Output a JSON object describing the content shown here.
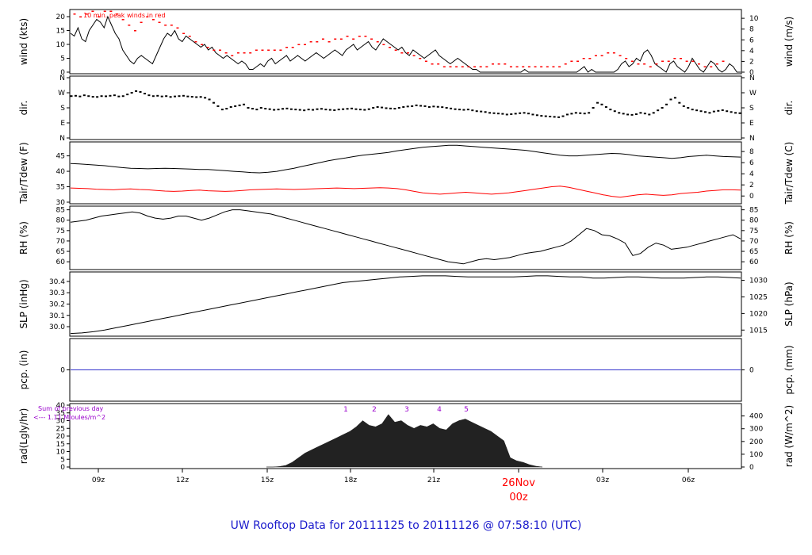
{
  "title": "UW Rooftop Data for 20111125  to  20111126 @ 07:58:10  (UTC)",
  "colors": {
    "title": "#1a1acc",
    "accent": "#ff0000",
    "purple": "#9900cc",
    "pcp_line": "#3333cc",
    "frame": "#000000"
  },
  "x_ticks": [
    "09z",
    "12z",
    "15z",
    "18z",
    "21z",
    "03z",
    "06z"
  ],
  "day_label": {
    "date": "26Nov",
    "hour": "00z"
  },
  "chart_data": [
    {
      "type": "line",
      "id": "wind",
      "ylabel": "wind (kts)",
      "ylabel_right": "wind (m/s)",
      "annotation": "10 min. peak winds in red",
      "yticks_left": [
        0,
        5,
        10,
        15,
        20
      ],
      "yticks_right": [
        0,
        2,
        4,
        6,
        8,
        10
      ],
      "ylim": [
        0,
        22
      ],
      "series": [
        {
          "values": [
            14,
            13,
            16,
            12,
            11,
            15,
            17,
            19,
            18,
            16,
            20,
            17,
            14,
            12,
            8,
            6,
            4,
            3,
            5,
            6,
            5,
            4,
            3,
            6,
            9,
            12,
            14,
            13,
            15,
            12,
            11,
            13,
            12,
            11,
            10,
            9,
            10,
            8,
            9,
            7,
            6,
            5,
            6,
            5,
            4,
            3,
            4,
            3,
            1,
            1,
            2,
            3,
            2,
            4,
            5,
            3,
            4,
            5,
            6,
            4,
            5,
            6,
            5,
            4,
            5,
            6,
            7,
            6,
            5,
            6,
            7,
            8,
            7,
            6,
            8,
            9,
            10,
            8,
            9,
            10,
            11,
            9,
            8,
            10,
            12,
            11,
            10,
            9,
            8,
            9,
            7,
            6,
            8,
            7,
            6,
            5,
            6,
            7,
            8,
            6,
            5,
            4,
            3,
            4,
            5,
            4,
            3,
            2,
            1,
            1,
            0,
            0,
            0,
            0,
            0,
            0,
            0,
            0,
            0,
            0,
            0,
            0,
            1,
            0,
            0,
            0,
            0,
            0,
            0,
            0,
            0,
            0,
            0,
            0,
            0,
            0,
            0,
            1,
            2,
            0,
            1,
            0,
            0,
            0,
            0,
            0,
            0,
            1,
            3,
            4,
            2,
            3,
            5,
            4,
            7,
            8,
            6,
            3,
            2,
            1,
            0,
            3,
            4,
            2,
            1,
            0,
            2,
            5,
            3,
            1,
            0,
            2,
            4,
            3,
            1,
            0,
            1,
            3,
            2,
            0,
            0
          ]
        },
        {
          "type": "scatter",
          "values": [
            20,
            19,
            20,
            21,
            19,
            21,
            21,
            20,
            18,
            16,
            14,
            17,
            19,
            18,
            17,
            16,
            16,
            15,
            13,
            12,
            10,
            9,
            8,
            7,
            7,
            6,
            5,
            6,
            6,
            6,
            7,
            7,
            7,
            7,
            7,
            8,
            8,
            9,
            9,
            10,
            10,
            11,
            10,
            11,
            11,
            12,
            11,
            12,
            12,
            11,
            10,
            9,
            8,
            7,
            6,
            6,
            5,
            4,
            3,
            2,
            2,
            1,
            1,
            1,
            1,
            1,
            1,
            1,
            1,
            2,
            2,
            2,
            1,
            1,
            1,
            1,
            1,
            1,
            1,
            1,
            1,
            2,
            3,
            3,
            4,
            4,
            5,
            5,
            6,
            6,
            5,
            4,
            3,
            2,
            2,
            1,
            2,
            3,
            3,
            4,
            4,
            3,
            3,
            2,
            1,
            1,
            2,
            3
          ]
        }
      ]
    },
    {
      "type": "scatter",
      "id": "dir",
      "ylabel": "dir.",
      "ylabel_right": "dir.",
      "yticks_left": [
        "N",
        "W",
        "S",
        "E",
        "N"
      ],
      "yticks_right": [
        "N",
        "W",
        "S",
        "E",
        "N"
      ],
      "ylim": [
        0,
        360
      ],
      "values": [
        250,
        252,
        248,
        255,
        250,
        246,
        245,
        250,
        249,
        252,
        255,
        248,
        250,
        260,
        270,
        280,
        275,
        265,
        255,
        250,
        252,
        248,
        250,
        245,
        248,
        250,
        252,
        248,
        246,
        244,
        245,
        240,
        230,
        210,
        190,
        170,
        175,
        185,
        190,
        195,
        200,
        180,
        175,
        170,
        180,
        175,
        172,
        168,
        170,
        174,
        176,
        172,
        170,
        168,
        165,
        170,
        168,
        172,
        174,
        170,
        168,
        166,
        170,
        172,
        174,
        176,
        172,
        170,
        168,
        172,
        180,
        185,
        182,
        178,
        176,
        175,
        180,
        185,
        188,
        190,
        195,
        192,
        190,
        185,
        188,
        186,
        184,
        180,
        176,
        172,
        170,
        168,
        170,
        165,
        160,
        158,
        155,
        150,
        148,
        146,
        144,
        140,
        142,
        145,
        148,
        150,
        146,
        140,
        136,
        132,
        130,
        128,
        126,
        124,
        130,
        140,
        145,
        150,
        148,
        146,
        150,
        180,
        210,
        200,
        185,
        170,
        160,
        150,
        145,
        140,
        138,
        142,
        150,
        146,
        140,
        150,
        165,
        180,
        200,
        230,
        240,
        210,
        190,
        180,
        170,
        165,
        160,
        155,
        150,
        158,
        162,
        166,
        160,
        155,
        150,
        148
      ]
    },
    {
      "type": "line",
      "id": "temp",
      "ylabel": "Tair/Tdew (F)",
      "ylabel_right": "Tair/Tdew (C)",
      "yticks_left": [
        30,
        35,
        40,
        45
      ],
      "yticks_right": [
        0,
        2,
        4,
        6,
        8
      ],
      "ylim": [
        30,
        49
      ],
      "series": [
        {
          "color": "#000000",
          "values": [
            42.5,
            42.4,
            42.2,
            42.0,
            41.8,
            41.5,
            41.2,
            41.0,
            40.9,
            40.8,
            40.9,
            41.0,
            40.9,
            40.8,
            40.7,
            40.6,
            40.6,
            40.4,
            40.2,
            40.0,
            39.8,
            39.6,
            39.5,
            39.7,
            40.0,
            40.5,
            41.0,
            41.6,
            42.2,
            42.8,
            43.4,
            43.9,
            44.3,
            44.8,
            45.2,
            45.5,
            45.8,
            46.1,
            46.6,
            47.0,
            47.4,
            47.8,
            48.0,
            48.2,
            48.4,
            48.4,
            48.2,
            48.0,
            47.8,
            47.6,
            47.4,
            47.2,
            47.0,
            46.8,
            46.4,
            46.0,
            45.6,
            45.2,
            45.0,
            45.0,
            45.2,
            45.4,
            45.6,
            45.8,
            45.7,
            45.4,
            45.0,
            44.8,
            44.6,
            44.4,
            44.2,
            44.4,
            44.8,
            45.0,
            45.2,
            45.0,
            44.8,
            44.7,
            44.6
          ]
        },
        {
          "color": "#ff0000",
          "values": [
            34.6,
            34.5,
            34.4,
            34.2,
            34.1,
            34.0,
            34.2,
            34.3,
            34.1,
            34.0,
            33.8,
            33.6,
            33.5,
            33.6,
            33.8,
            33.9,
            33.7,
            33.6,
            33.5,
            33.6,
            33.8,
            34.0,
            34.1,
            34.2,
            34.3,
            34.2,
            34.1,
            34.2,
            34.3,
            34.4,
            34.5,
            34.6,
            34.5,
            34.4,
            34.5,
            34.6,
            34.7,
            34.6,
            34.4,
            34.0,
            33.5,
            33.0,
            32.8,
            32.6,
            32.8,
            33.0,
            33.2,
            33.0,
            32.8,
            32.6,
            32.8,
            33.0,
            33.4,
            33.8,
            34.2,
            34.6,
            35.0,
            35.2,
            34.8,
            34.2,
            33.6,
            33.0,
            32.4,
            31.9,
            31.6,
            32.0,
            32.4,
            32.6,
            32.4,
            32.2,
            32.4,
            32.8,
            33.0,
            33.2,
            33.6,
            33.8,
            34.0,
            34.0,
            33.9
          ]
        }
      ]
    },
    {
      "type": "line",
      "id": "rh",
      "ylabel": "RH (%)",
      "ylabel_right": "RH (%)",
      "yticks_left": [
        60,
        65,
        70,
        75,
        80,
        85
      ],
      "yticks_right": [
        60,
        65,
        70,
        75,
        80,
        85
      ],
      "ylim": [
        57,
        86
      ],
      "series": [
        {
          "color": "#000000",
          "values": [
            79,
            79.5,
            80,
            81,
            82,
            82.5,
            83,
            83.5,
            84,
            83.5,
            82,
            81,
            80.5,
            81,
            82,
            82,
            81,
            80,
            81,
            82.5,
            84,
            85,
            85,
            84.5,
            84,
            83.5,
            83,
            82,
            81,
            80,
            79,
            78,
            77,
            76,
            75,
            74,
            73,
            72,
            71,
            70,
            69,
            68,
            67,
            66,
            65,
            64,
            63,
            62,
            61,
            60,
            59.5,
            59,
            60,
            61,
            61.5,
            61,
            61.5,
            62,
            63,
            64,
            64.5,
            65,
            66,
            67,
            68,
            70,
            73,
            76,
            75,
            73,
            72.5,
            71,
            69,
            63,
            64,
            67,
            69,
            68,
            66,
            66.5,
            67,
            68,
            69,
            70,
            71,
            72,
            73,
            71
          ]
        }
      ]
    },
    {
      "type": "line",
      "id": "slp",
      "ylabel": "SLP (inHg)",
      "ylabel_right": "SLP (hPa)",
      "yticks_left": [
        "30.0",
        "30.1",
        "30.2",
        "30.3",
        "30.4"
      ],
      "yticks_right": [
        1015,
        1020,
        1025,
        1030
      ],
      "ylim": [
        29.93,
        30.47
      ],
      "series": [
        {
          "color": "#000000",
          "values": [
            29.94,
            29.945,
            29.955,
            29.97,
            29.99,
            30.01,
            30.03,
            30.05,
            30.07,
            30.09,
            30.11,
            30.13,
            30.15,
            30.17,
            30.19,
            30.21,
            30.23,
            30.25,
            30.27,
            30.29,
            30.31,
            30.33,
            30.35,
            30.37,
            30.39,
            30.4,
            30.41,
            30.42,
            30.43,
            30.44,
            30.445,
            30.45,
            30.45,
            30.45,
            30.445,
            30.44,
            30.44,
            30.44,
            30.44,
            30.44,
            30.445,
            30.45,
            30.45,
            30.445,
            30.44,
            30.44,
            30.43,
            30.43,
            30.435,
            30.44,
            30.44,
            30.435,
            30.43,
            30.43,
            30.43,
            30.435,
            30.44,
            30.44,
            30.435,
            30.43
          ]
        }
      ]
    },
    {
      "type": "line",
      "id": "pcp",
      "ylabel": "pcp. (in)",
      "ylabel_right": "pcp. (mm)",
      "yticks_left": [
        0
      ],
      "yticks_right": [
        0
      ],
      "ylim": [
        -1,
        1
      ],
      "series": [
        {
          "color": "#3333cc",
          "values": [
            0,
            0
          ]
        }
      ]
    },
    {
      "type": "area",
      "id": "rad",
      "ylabel": "rad(Lgly/hr)",
      "ylabel_right": "rad (W/m^2)",
      "annotation_line1": "Sum of previous day",
      "annotation_line2": "<--- 1.11 MJoules/m^2",
      "marker_labels": [
        "1",
        "2",
        "3",
        "4",
        "5"
      ],
      "yticks_left": [
        0,
        5,
        10,
        15,
        20,
        25,
        30,
        35,
        40
      ],
      "yticks_right": [
        0,
        100,
        200,
        300,
        400
      ],
      "ylim": [
        0,
        40
      ],
      "series": [
        {
          "color": "#222222",
          "values": [
            0,
            0,
            0.3,
            1,
            3,
            6,
            9,
            11,
            13,
            15,
            17,
            19,
            21,
            23,
            26,
            30,
            27,
            26,
            28,
            34,
            29,
            30,
            27,
            25,
            27,
            26,
            28,
            25,
            24,
            28,
            30,
            31,
            29,
            27,
            25,
            23,
            20,
            17,
            6,
            4,
            3,
            1.5,
            0.5,
            0
          ]
        }
      ]
    }
  ]
}
